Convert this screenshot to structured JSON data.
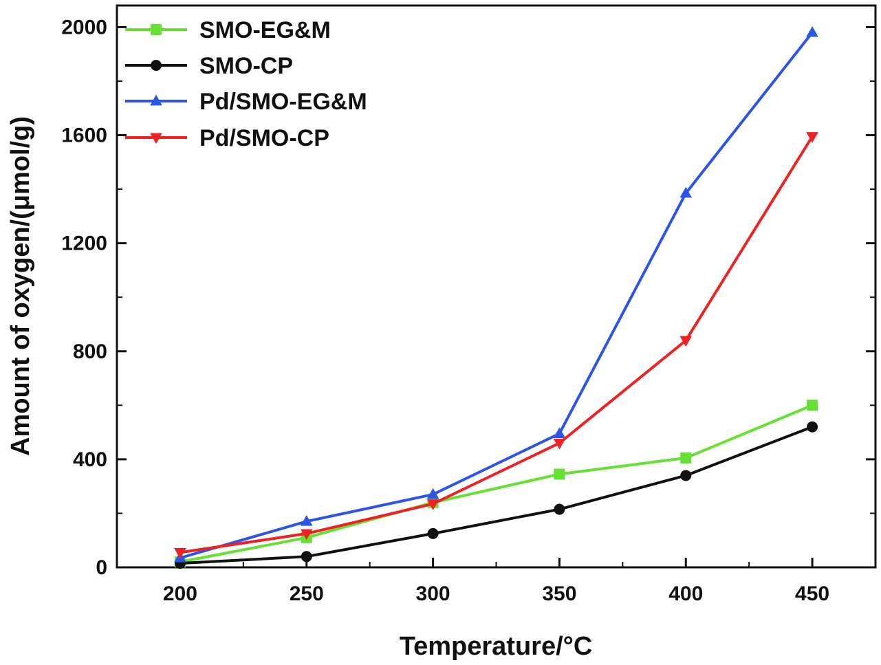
{
  "chart_data": {
    "type": "line",
    "title": "",
    "xlabel": "Temperature/°C",
    "ylabel": "Amount of oxygen/(μmol/g)",
    "x": [
      200,
      250,
      300,
      350,
      400,
      450
    ],
    "xlim": [
      175,
      475
    ],
    "ylim": [
      0,
      2080
    ],
    "xticks": [
      200,
      250,
      300,
      350,
      400,
      450
    ],
    "yticks": [
      0,
      400,
      800,
      1200,
      1600,
      2000
    ],
    "grid": false,
    "legend_position": "top-left",
    "series": [
      {
        "name": "SMO-EG&M",
        "color": "#66e033",
        "marker": "square",
        "values": [
          20,
          110,
          240,
          345,
          405,
          600
        ]
      },
      {
        "name": "SMO-CP",
        "color": "#111111",
        "marker": "circle",
        "values": [
          15,
          40,
          125,
          215,
          340,
          520
        ]
      },
      {
        "name": "Pd/SMO-EG&M",
        "color": "#2b55e8",
        "marker": "triangle-up",
        "values": [
          35,
          170,
          270,
          495,
          1385,
          1980
        ]
      },
      {
        "name": "Pd/SMO-CP",
        "color": "#ee2222",
        "marker": "triangle-down",
        "values": [
          55,
          125,
          235,
          460,
          840,
          1595
        ]
      }
    ]
  }
}
